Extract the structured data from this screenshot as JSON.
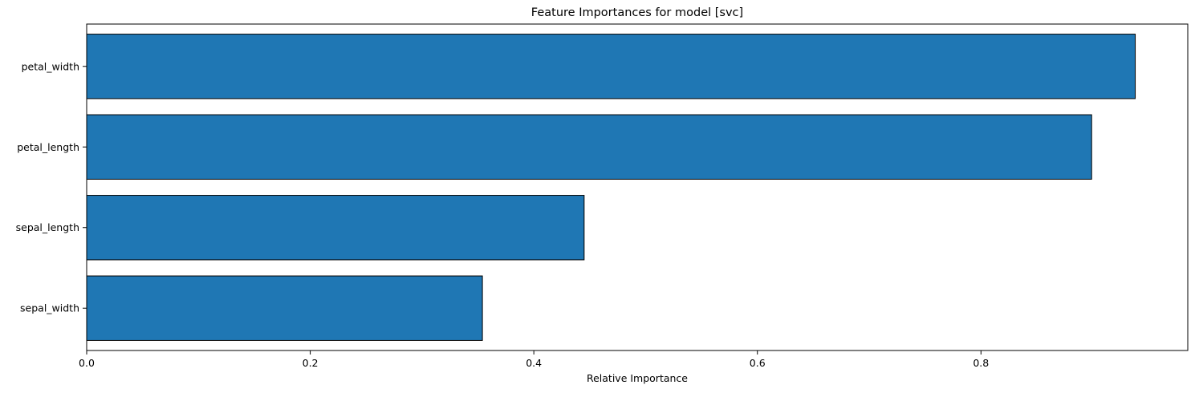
{
  "chart_data": {
    "type": "bar",
    "orientation": "horizontal",
    "title": "Feature Importances for model [svc]",
    "xlabel": "Relative Importance",
    "ylabel": "",
    "categories": [
      "petal_width",
      "petal_length",
      "sepal_length",
      "sepal_width"
    ],
    "values": [
      0.938,
      0.899,
      0.445,
      0.354
    ],
    "xlim": [
      0,
      0.985
    ],
    "xticks": [
      0.0,
      0.2,
      0.4,
      0.6,
      0.8
    ],
    "xtick_labels": [
      "0.0",
      "0.2",
      "0.4",
      "0.6",
      "0.8"
    ],
    "grid": false,
    "legend": "none",
    "colors": {
      "bar_fill": "#1f77b4",
      "bar_edge": "#000000",
      "axes": "#000000",
      "background": "#ffffff"
    }
  }
}
